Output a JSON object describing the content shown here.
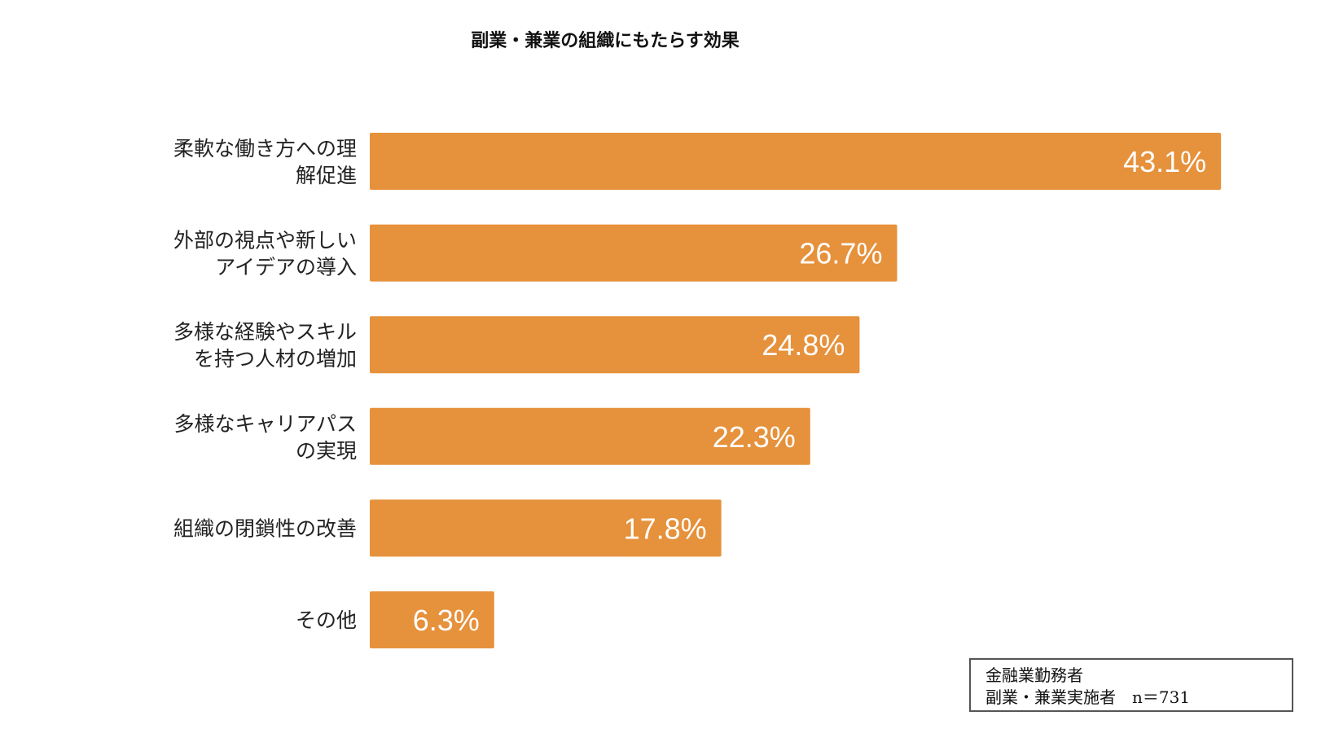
{
  "chart_data": {
    "type": "bar",
    "orientation": "horizontal",
    "title": "副業・兼業の組織にもたらす効果",
    "categories": [
      [
        "柔軟な働き方への理",
        "解促進"
      ],
      [
        "外部の視点や新しい",
        "アイデアの導入"
      ],
      [
        "多様な経験やスキル",
        "を持つ人材の増加"
      ],
      [
        "多様なキャリアパス",
        "の実現"
      ],
      [
        "組織の閉鎖性の改善"
      ],
      [
        "その他"
      ]
    ],
    "values": [
      43.1,
      26.7,
      24.8,
      22.3,
      17.8,
      6.3
    ],
    "data_labels": [
      "43.1%",
      "26.7%",
      "24.8%",
      "22.3%",
      "17.8%",
      "6.3%"
    ],
    "unit": "%",
    "bar_color": "#E6913B",
    "grid": false,
    "axes_visible": false
  },
  "note": {
    "line1": "金融業勤務者",
    "line2": "副業・兼業実施者　n＝731"
  }
}
